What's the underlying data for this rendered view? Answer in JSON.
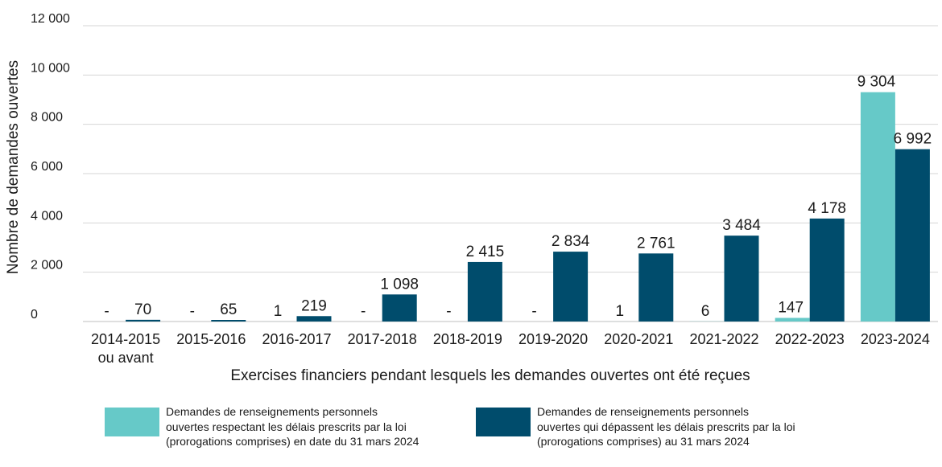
{
  "chart_data": {
    "type": "bar",
    "title": "",
    "xlabel": "Exercises financiers pendant lesquels les demandes ouvertes ont été reçues",
    "ylabel": "Nombre de demandes ouvertes",
    "ylim": [
      0,
      12000
    ],
    "yticks": [
      0,
      2000,
      4000,
      6000,
      8000,
      10000,
      12000
    ],
    "ytick_labels": [
      "0",
      "2 000",
      "4 000",
      "6 000",
      "8 000",
      "10 000",
      "12 000"
    ],
    "grid": true,
    "legend_position": "bottom",
    "categories": [
      "2014-2015\nou avant",
      "2015-2016",
      "2016-2017",
      "2017-2018",
      "2018-2019",
      "2019-2020",
      "2020-2021",
      "2021-2022",
      "2022-2023",
      "2023-2024"
    ],
    "series": [
      {
        "name": "Demandes de renseignements personnels\nouvertes respectant les délais prescrits par la loi\n(prorogations comprises) en date du 31 mars 2024",
        "color": "#66c9c8",
        "values": [
          0,
          0,
          1,
          0,
          0,
          0,
          1,
          6,
          147,
          9304
        ],
        "labels": [
          "-",
          "-",
          "1",
          "-",
          "-",
          "-",
          "1",
          "6",
          "147",
          "9 304"
        ]
      },
      {
        "name": "Demandes de renseignements personnels\nouvertes qui dépassent les délais prescrits par la loi\n(prorogations comprises) au 31 mars 2024",
        "color": "#004c6c",
        "values": [
          70,
          65,
          219,
          1098,
          2415,
          2834,
          2761,
          3484,
          4178,
          6992
        ],
        "labels": [
          "70",
          "65",
          "219",
          "1 098",
          "2 415",
          "2 834",
          "2 761",
          "3 484",
          "4 178",
          "6 992"
        ]
      }
    ]
  }
}
